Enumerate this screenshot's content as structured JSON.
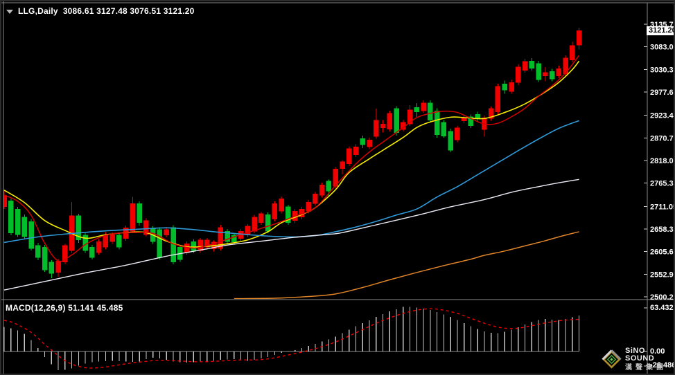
{
  "header": {
    "symbol": "LLG,Daily",
    "ohlc": "3086.61 3127.48 3076.51 3121.20"
  },
  "logo": {
    "line1": "SiNO SOUND",
    "line2": "漢聲集團"
  },
  "chart_data": {
    "type": "candlestick",
    "symbol": "LLG",
    "timeframe": "Daily",
    "ohlc_display": {
      "open": "3086.61",
      "high": "3127.48",
      "low": "3076.51",
      "close": "3121.20"
    },
    "price_axis": {
      "ticks": [
        "3135.75",
        "3083.05",
        "3030.35",
        "2977.65",
        "2923.40",
        "2870.70",
        "2818.00",
        "2765.30",
        "2711.05",
        "2658.35",
        "2605.65",
        "2552.95",
        "2500.25"
      ],
      "current": "3121.20"
    },
    "candles": {
      "up_color": "#f20000",
      "down_color": "#00bd2a",
      "bars": [
        [
          2710,
          2749,
          2705,
          2737
        ],
        [
          2724,
          2729,
          2644,
          2649
        ],
        [
          2705,
          2710,
          2640,
          2645
        ],
        [
          2686,
          2692,
          2634,
          2640
        ],
        [
          2676,
          2682,
          2608,
          2613
        ],
        [
          2620,
          2626,
          2586,
          2592
        ],
        [
          2616,
          2621,
          2558,
          2563
        ],
        [
          2581,
          2586,
          2544,
          2555
        ],
        [
          2557,
          2589,
          2547,
          2584
        ],
        [
          2581,
          2624,
          2576,
          2620
        ],
        [
          2608,
          2721,
          2603,
          2689
        ],
        [
          2689,
          2694,
          2626,
          2633
        ],
        [
          2644,
          2649,
          2603,
          2608
        ],
        [
          2616,
          2621,
          2587,
          2592
        ],
        [
          2603,
          2634,
          2599,
          2629
        ],
        [
          2616,
          2651,
          2611,
          2645
        ],
        [
          2629,
          2651,
          2624,
          2645
        ],
        [
          2644,
          2649,
          2611,
          2616
        ],
        [
          2636,
          2666,
          2631,
          2661
        ],
        [
          2653,
          2733,
          2649,
          2718
        ],
        [
          2718,
          2723,
          2666,
          2673
        ],
        [
          2645,
          2683,
          2641,
          2678
        ],
        [
          2660,
          2665,
          2624,
          2629
        ],
        [
          2657,
          2662,
          2587,
          2592
        ],
        [
          2644,
          2663,
          2639,
          2657
        ],
        [
          2662,
          2667,
          2576,
          2581
        ],
        [
          2616,
          2621,
          2582,
          2587
        ],
        [
          2603,
          2629,
          2599,
          2624
        ],
        [
          2629,
          2634,
          2603,
          2608
        ],
        [
          2608,
          2637,
          2603,
          2633
        ],
        [
          2616,
          2637,
          2611,
          2633
        ],
        [
          2612,
          2632,
          2606,
          2628
        ],
        [
          2613,
          2668,
          2608,
          2662
        ],
        [
          2653,
          2658,
          2624,
          2629
        ],
        [
          2644,
          2649,
          2623,
          2628
        ],
        [
          2636,
          2658,
          2631,
          2653
        ],
        [
          2644,
          2670,
          2639,
          2665
        ],
        [
          2653,
          2691,
          2649,
          2686
        ],
        [
          2673,
          2698,
          2668,
          2694
        ],
        [
          2692,
          2697,
          2649,
          2653
        ],
        [
          2681,
          2723,
          2676,
          2718
        ],
        [
          2700,
          2734,
          2695,
          2729
        ],
        [
          2710,
          2715,
          2668,
          2673
        ],
        [
          2678,
          2705,
          2672,
          2700
        ],
        [
          2686,
          2710,
          2681,
          2705
        ],
        [
          2700,
          2726,
          2695,
          2721
        ],
        [
          2718,
          2745,
          2713,
          2740
        ],
        [
          2737,
          2766,
          2732,
          2761
        ],
        [
          2770,
          2774,
          2734,
          2747
        ],
        [
          2758,
          2803,
          2753,
          2798
        ],
        [
          2799,
          2819,
          2786,
          2815
        ],
        [
          2810,
          2851,
          2805,
          2846
        ],
        [
          2831,
          2856,
          2826,
          2850
        ],
        [
          2869,
          2876,
          2847,
          2855
        ],
        [
          2850,
          2871,
          2845,
          2866
        ],
        [
          2874,
          2939,
          2869,
          2912
        ],
        [
          2894,
          2912,
          2883,
          2903
        ],
        [
          2891,
          2934,
          2886,
          2928
        ],
        [
          2939,
          2945,
          2876,
          2883
        ],
        [
          2890,
          2912,
          2886,
          2907
        ],
        [
          2903,
          2947,
          2899,
          2936
        ],
        [
          2942,
          2952,
          2920,
          2931
        ],
        [
          2934,
          2958,
          2929,
          2952
        ],
        [
          2952,
          2958,
          2907,
          2912
        ],
        [
          2934,
          2940,
          2871,
          2878
        ],
        [
          2907,
          2912,
          2871,
          2875
        ],
        [
          2886,
          2892,
          2837,
          2842
        ],
        [
          2866,
          2899,
          2861,
          2894
        ],
        [
          2910,
          2923,
          2905,
          2918
        ],
        [
          2920,
          2925,
          2894,
          2899
        ],
        [
          2926,
          2932,
          2910,
          2915
        ],
        [
          2890,
          2923,
          2874,
          2918
        ],
        [
          2916,
          2944,
          2911,
          2939
        ],
        [
          2931,
          2997,
          2926,
          2991
        ],
        [
          2997,
          3004,
          2974,
          2982
        ],
        [
          2979,
          3007,
          2974,
          3000
        ],
        [
          3000,
          3042,
          2994,
          3036
        ],
        [
          3028,
          3055,
          3023,
          3049
        ],
        [
          3050,
          3057,
          3028,
          3033
        ],
        [
          3044,
          3050,
          3001,
          3006
        ],
        [
          3015,
          3036,
          3003,
          3023
        ],
        [
          3026,
          3032,
          3003,
          3008
        ],
        [
          3015,
          3039,
          3010,
          3032
        ],
        [
          3020,
          3063,
          3015,
          3057
        ],
        [
          3052,
          3095,
          3047,
          3086
        ],
        [
          3086.61,
          3127.48,
          3076.51,
          3121.2
        ]
      ]
    },
    "moving_averages": [
      {
        "name": "ma-fast-yellow",
        "color": "#f5ec00",
        "width": 1.6,
        "points": [
          [
            0,
            2749
          ],
          [
            3,
            2720
          ],
          [
            6,
            2678
          ],
          [
            9,
            2655
          ],
          [
            12,
            2637
          ],
          [
            15,
            2645
          ],
          [
            18,
            2650
          ],
          [
            21,
            2650
          ],
          [
            24,
            2630
          ],
          [
            27,
            2617
          ],
          [
            30,
            2618
          ],
          [
            33,
            2624
          ],
          [
            36,
            2633
          ],
          [
            39,
            2652
          ],
          [
            41,
            2673
          ],
          [
            44,
            2692
          ],
          [
            46,
            2708
          ],
          [
            49,
            2750
          ],
          [
            51,
            2790
          ],
          [
            54,
            2822
          ],
          [
            56,
            2842
          ],
          [
            59,
            2872
          ],
          [
            61,
            2895
          ],
          [
            63,
            2908
          ],
          [
            66,
            2919
          ],
          [
            68,
            2918
          ],
          [
            71,
            2916
          ],
          [
            74,
            2930
          ],
          [
            77,
            2950
          ],
          [
            80,
            2978
          ],
          [
            82,
            3000
          ],
          [
            84,
            3030
          ],
          [
            85,
            3050
          ]
        ]
      },
      {
        "name": "ma-fast-red",
        "color": "#d40000",
        "width": 1.5,
        "points": [
          [
            0,
            2737
          ],
          [
            2,
            2723
          ],
          [
            4,
            2690
          ],
          [
            6,
            2625
          ],
          [
            8,
            2584
          ],
          [
            10,
            2598
          ],
          [
            12,
            2622
          ],
          [
            14,
            2638
          ],
          [
            16,
            2647
          ],
          [
            19,
            2650
          ],
          [
            22,
            2648
          ],
          [
            25,
            2624
          ],
          [
            28,
            2614
          ],
          [
            31,
            2624
          ],
          [
            34,
            2640
          ],
          [
            37,
            2655
          ],
          [
            40,
            2670
          ],
          [
            43,
            2688
          ],
          [
            46,
            2708
          ],
          [
            49,
            2760
          ],
          [
            52,
            2810
          ],
          [
            54,
            2838
          ],
          [
            56,
            2861
          ],
          [
            59,
            2895
          ],
          [
            61,
            2918
          ],
          [
            63,
            2928
          ],
          [
            65,
            2933
          ],
          [
            67,
            2930
          ],
          [
            69,
            2916
          ],
          [
            71,
            2903
          ],
          [
            73,
            2905
          ],
          [
            75,
            2920
          ],
          [
            77,
            2940
          ],
          [
            79,
            2968
          ],
          [
            81,
            2992
          ],
          [
            83,
            3022
          ],
          [
            85,
            3063
          ]
        ]
      },
      {
        "name": "ma-mid-blue",
        "color": "#2e9ad8",
        "width": 1.6,
        "points": [
          [
            0,
            2627
          ],
          [
            5,
            2640
          ],
          [
            10,
            2648
          ],
          [
            15,
            2654
          ],
          [
            20,
            2658
          ],
          [
            24,
            2661
          ],
          [
            28,
            2657
          ],
          [
            31,
            2652
          ],
          [
            34,
            2648
          ],
          [
            37,
            2644
          ],
          [
            40,
            2641
          ],
          [
            43,
            2640
          ],
          [
            46,
            2643
          ],
          [
            49,
            2652
          ],
          [
            52,
            2663
          ],
          [
            55,
            2676
          ],
          [
            58,
            2691
          ],
          [
            61,
            2705
          ],
          [
            64,
            2733
          ],
          [
            67,
            2757
          ],
          [
            70,
            2785
          ],
          [
            73,
            2813
          ],
          [
            76,
            2841
          ],
          [
            79,
            2868
          ],
          [
            82,
            2893
          ],
          [
            85,
            2911
          ]
        ]
      },
      {
        "name": "ma-slow-white",
        "color": "#ebebf5",
        "width": 1.4,
        "points": [
          [
            0,
            2516
          ],
          [
            6,
            2536
          ],
          [
            12,
            2556
          ],
          [
            18,
            2574
          ],
          [
            24,
            2595
          ],
          [
            30,
            2612
          ],
          [
            33,
            2621
          ],
          [
            38,
            2630
          ],
          [
            43,
            2639
          ],
          [
            48,
            2646
          ],
          [
            50,
            2650
          ],
          [
            55,
            2668
          ],
          [
            61,
            2690
          ],
          [
            66,
            2710
          ],
          [
            71,
            2727
          ],
          [
            75,
            2744
          ],
          [
            79,
            2757
          ],
          [
            82,
            2766
          ],
          [
            85,
            2774
          ]
        ]
      },
      {
        "name": "ma-long-orange",
        "color": "#e08428",
        "width": 1.5,
        "points": [
          [
            34,
            2496
          ],
          [
            40,
            2497
          ],
          [
            45,
            2501
          ],
          [
            49,
            2507
          ],
          [
            53,
            2522
          ],
          [
            57,
            2540
          ],
          [
            61,
            2557
          ],
          [
            65,
            2573
          ],
          [
            69,
            2588
          ],
          [
            71,
            2597
          ],
          [
            74,
            2607
          ],
          [
            77,
            2619
          ],
          [
            80,
            2631
          ],
          [
            82,
            2640
          ],
          [
            85,
            2652
          ]
        ]
      }
    ],
    "macd": {
      "label": "MACD(12,26,9)",
      "main_value": "51.141",
      "signal_value": "45.485",
      "histogram_color": "#c9c9c9",
      "signal_color": "#f20000",
      "axis_ticks": [
        "63.432",
        "0.00",
        "-26.486"
      ],
      "histogram": [
        35,
        33,
        30,
        25,
        16,
        5,
        -8,
        -18,
        -26.5,
        -26,
        -24,
        -20,
        -17,
        -15,
        -14,
        -13.5,
        -13,
        -13.5,
        -14,
        -14.5,
        -14,
        -11,
        -9,
        -10,
        -12,
        -14,
        -15,
        -15.5,
        -15,
        -14.5,
        -14,
        -13,
        -12,
        -11.5,
        -11,
        -12,
        -13,
        -12,
        -10,
        -8,
        -5,
        -2,
        0.5,
        2,
        5,
        8,
        11,
        14,
        17,
        21,
        26,
        31,
        36,
        40,
        44,
        49,
        53,
        57,
        60,
        63,
        63.4,
        62.5,
        61,
        59,
        56,
        52.5,
        49,
        44.5,
        40,
        36,
        32,
        28.5,
        26.5,
        26,
        28,
        31,
        34.5,
        38,
        41.5,
        44.5,
        46,
        45,
        44.5,
        46,
        48.5,
        51.141
      ],
      "signal": [
        44,
        42,
        38,
        33,
        27,
        19,
        10,
        2,
        -6,
        -13,
        -18,
        -21,
        -23,
        -23.5,
        -23,
        -22,
        -20.5,
        -19,
        -17.5,
        -16,
        -15,
        -14,
        -13,
        -12.5,
        -12.5,
        -13,
        -13.5,
        -14,
        -14.5,
        -14.5,
        -14.5,
        -14,
        -13.5,
        -13,
        -12.5,
        -12,
        -12,
        -12,
        -11.5,
        -10.5,
        -9,
        -7,
        -5,
        -3,
        -1,
        1.5,
        4,
        7,
        10,
        13.5,
        17.5,
        22,
        26.5,
        31,
        35.5,
        40,
        44,
        47.5,
        51,
        54,
        56.5,
        58.5,
        60,
        60.5,
        60,
        58.5,
        56.5,
        54,
        50.5,
        47,
        43.5,
        40,
        37,
        34.5,
        33,
        32.5,
        33,
        34.5,
        36.5,
        38.5,
        40.5,
        42,
        43.5,
        44.5,
        45.2,
        45.485
      ]
    }
  }
}
